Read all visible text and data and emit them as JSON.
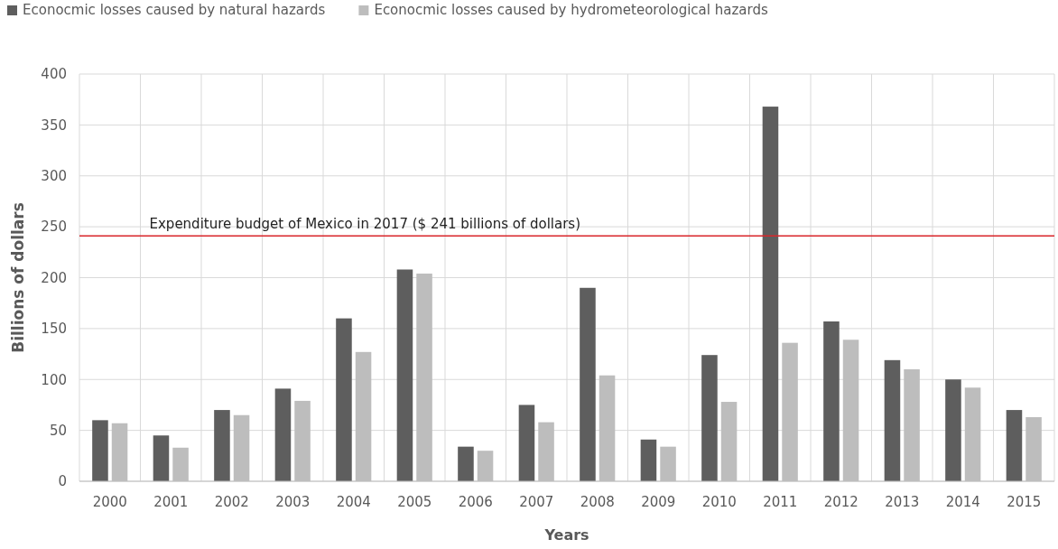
{
  "chart_data": {
    "type": "bar",
    "xlabel": "Years",
    "ylabel": "Billions of dollars",
    "categories": [
      "2000",
      "2001",
      "2002",
      "2003",
      "2004",
      "2005",
      "2006",
      "2007",
      "2008",
      "2009",
      "2010",
      "2011",
      "2012",
      "2013",
      "2014",
      "2015"
    ],
    "series": [
      {
        "name": "Econocmic losses caused by natural hazards",
        "color": "#5e5e5e",
        "values": [
          60,
          45,
          70,
          91,
          160,
          208,
          34,
          75,
          190,
          41,
          124,
          368,
          157,
          119,
          100,
          70
        ]
      },
      {
        "name": "Econocmic losses caused by hydrometeorological hazards",
        "color": "#bdbdbd",
        "values": [
          57,
          33,
          65,
          79,
          127,
          204,
          30,
          58,
          104,
          34,
          78,
          136,
          139,
          110,
          92,
          63
        ]
      }
    ],
    "ylim": [
      0,
      400
    ],
    "yticks": [
      0,
      50,
      100,
      150,
      200,
      250,
      300,
      350,
      400
    ],
    "grid": true,
    "legend": "top left",
    "ref_lines": [
      {
        "axis": "y",
        "value": 241,
        "label": "Expenditure budget of Mexico in 2017 ($ 241 billions of dollars)",
        "color": "#d9262b"
      }
    ]
  }
}
